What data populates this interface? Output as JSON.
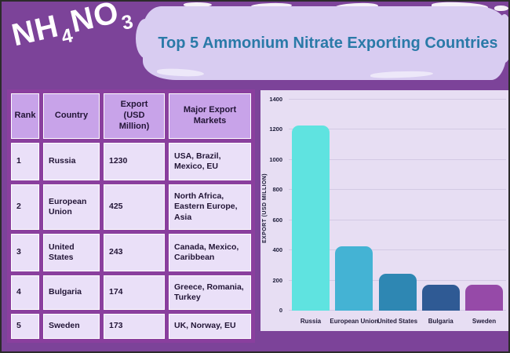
{
  "page": {
    "background": "#7c4399",
    "banner_background": "#d8ccf1"
  },
  "logo": {
    "main1": "NH",
    "sub1": "4",
    "main2": "NO",
    "sub2": "3"
  },
  "header": {
    "title": "Top 5 Ammonium Nitrate Exporting Countries",
    "title_color": "#2a7aa8"
  },
  "table": {
    "headers": [
      "Rank",
      "Country",
      "Export (USD Million)",
      "Major Export Markets"
    ],
    "rows": [
      {
        "rank": "1",
        "country": "Russia",
        "export": "1230",
        "markets": "USA, Brazil, Mexico, EU"
      },
      {
        "rank": "2",
        "country": "European Union",
        "export": "425",
        "markets": "North Africa, Eastern Europe, Asia"
      },
      {
        "rank": "3",
        "country": "United States",
        "export": "243",
        "markets": "Canada, Mexico, Caribbean"
      },
      {
        "rank": "4",
        "country": "Bulgaria",
        "export": "174",
        "markets": "Greece, Romania, Turkey"
      },
      {
        "rank": "5",
        "country": "Sweden",
        "export": "173",
        "markets": "UK, Norway, EU"
      }
    ]
  },
  "chart_data": {
    "type": "bar",
    "title": "",
    "categories": [
      "Russia",
      "European Union",
      "United States",
      "Bulgaria",
      "Sweden"
    ],
    "values": [
      1230,
      425,
      243,
      174,
      173
    ],
    "colors": [
      "#5fe3e0",
      "#44b3d4",
      "#2e87b3",
      "#2f5a94",
      "#964aa8"
    ],
    "xlabel": "",
    "ylabel": "EXPORT (USD MILLION)",
    "ylim": [
      0,
      1400
    ],
    "yticks": [
      0,
      200,
      400,
      600,
      800,
      1000,
      1200,
      1400
    ],
    "grid": true,
    "legend": "none",
    "panel_background": "#e7def3"
  }
}
